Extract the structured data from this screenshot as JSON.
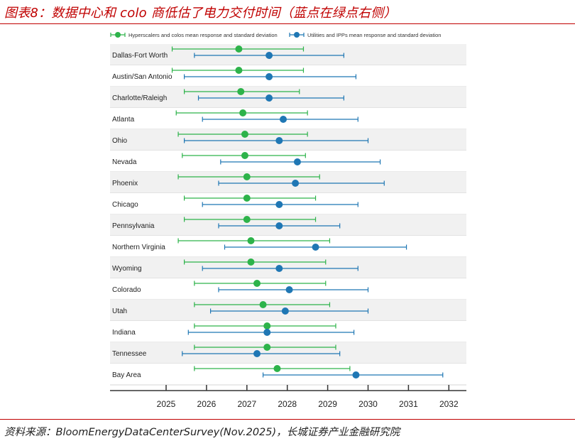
{
  "header": {
    "title": "图表8：数据中心和 colo 商低估了电力交付时间（蓝点在绿点右侧）"
  },
  "footer": {
    "source": "资料来源：BloomEnergyDataCenterSurvey(Nov.2025)，长城证券产业金融研究院"
  },
  "chart_data": {
    "type": "scatter",
    "xlim": [
      2023.6,
      2032.4
    ],
    "xticks": [
      2025,
      2026,
      2027,
      2028,
      2029,
      2030,
      2031,
      2032
    ],
    "categories": [
      "Dallas-Fort Worth",
      "Austin/San Antonio",
      "Charlotte/Raleigh",
      "Atlanta",
      "Ohio",
      "Nevada",
      "Phoenix",
      "Chicago",
      "Pennsylvania",
      "Northern Virginia",
      "Wyoming",
      "Colorado",
      "Utah",
      "Indiana",
      "Tennessee",
      "Bay Area"
    ],
    "legend_position": "top",
    "series": [
      {
        "name": "Hyperscalers and colos mean response and standard deviation",
        "color": "#2db34a",
        "mean": [
          2026.8,
          2026.8,
          2026.85,
          2026.9,
          2026.95,
          2026.95,
          2027.0,
          2027.0,
          2027.0,
          2027.1,
          2027.1,
          2027.25,
          2027.4,
          2027.5,
          2027.5,
          2027.75
        ],
        "low": [
          2025.15,
          2025.15,
          2025.45,
          2025.25,
          2025.3,
          2025.4,
          2025.3,
          2025.45,
          2025.45,
          2025.3,
          2025.45,
          2025.7,
          2025.7,
          2025.7,
          2025.7,
          2025.7
        ],
        "high": [
          2028.4,
          2028.4,
          2028.3,
          2028.5,
          2028.5,
          2028.45,
          2028.8,
          2028.7,
          2028.7,
          2029.05,
          2028.95,
          2028.95,
          2029.05,
          2029.2,
          2029.2,
          2029.55
        ]
      },
      {
        "name": "Utilities and IPPs mean response and standard deviation",
        "color": "#1f77b4",
        "mean": [
          2027.55,
          2027.55,
          2027.55,
          2027.9,
          2027.8,
          2028.25,
          2028.2,
          2027.8,
          2027.8,
          2028.7,
          2027.8,
          2028.05,
          2027.95,
          2027.5,
          2027.25,
          2029.7
        ],
        "low": [
          2025.7,
          2025.45,
          2025.8,
          2025.9,
          2025.45,
          2026.35,
          2026.3,
          2025.9,
          2026.3,
          2026.45,
          2025.9,
          2026.3,
          2026.1,
          2025.55,
          2025.4,
          2027.4
        ],
        "high": [
          2029.4,
          2029.7,
          2029.4,
          2029.75,
          2030.0,
          2030.3,
          2030.4,
          2029.75,
          2029.3,
          2030.95,
          2029.75,
          2030.0,
          2030.0,
          2029.65,
          2029.3,
          2031.85
        ]
      }
    ]
  }
}
